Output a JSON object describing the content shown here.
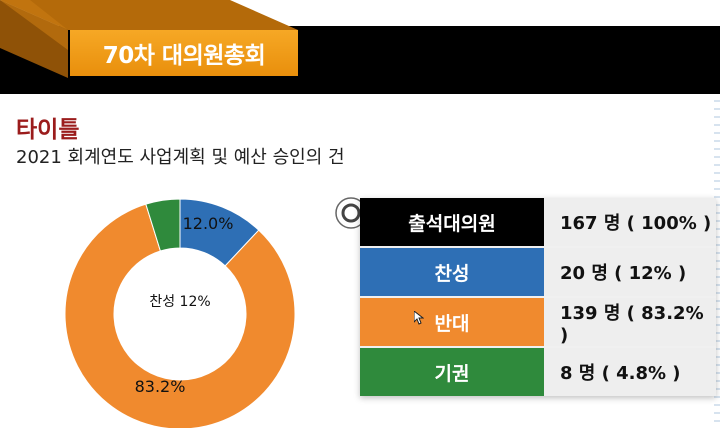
{
  "header": {
    "title": "70차 대의원총회"
  },
  "section": {
    "label": "타이틀",
    "subtitle": "2021 회계연도 사업계획 및 예산 승인의 건"
  },
  "colors": {
    "black": "#000000",
    "blue": "#2e6fb5",
    "orange": "#f08a2e",
    "green": "#2f8a3c"
  },
  "chart_data": {
    "type": "pie",
    "style": "donut",
    "slices": [
      {
        "name": "찬성",
        "value": 12.0,
        "label": "12.0%",
        "color": "#2e6fb5"
      },
      {
        "name": "반대",
        "value": 83.2,
        "label": "83.2%",
        "color": "#f08a2e"
      },
      {
        "name": "기권",
        "value": 4.8,
        "label": "",
        "color": "#2f8a3c"
      }
    ],
    "center_label": "찬성 12%"
  },
  "table": {
    "rows": [
      {
        "label": "출석대의원",
        "value": "167 명 ( 100% )",
        "color": "#000000"
      },
      {
        "label": "찬성",
        "value": "20 명 ( 12% )",
        "color": "#2e6fb5"
      },
      {
        "label": "반대",
        "value": "139 명 ( 83.2% )",
        "color": "#f08a2e"
      },
      {
        "label": "기권",
        "value": "8 명 ( 4.8% )",
        "color": "#2f8a3c"
      }
    ]
  }
}
